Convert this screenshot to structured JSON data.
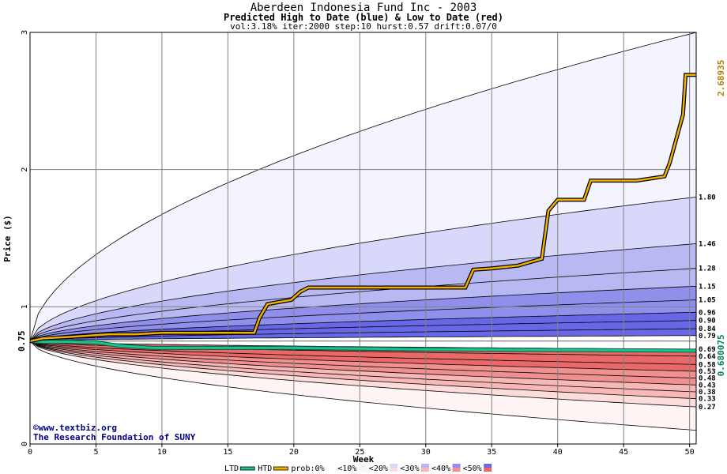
{
  "chart_data": {
    "type": "area",
    "title": "Aberdeen Indonesia Fund Inc - 2003",
    "subtitle": "Predicted High to Date (blue) &  Low to Date (red)",
    "params": "vol:3.18% iter:2000 step:10 hurst:0.57 drift:0.07/0",
    "xlabel": "Week",
    "ylabel": "Price ($)",
    "xlim": [
      0,
      50.5
    ],
    "ylim": [
      0,
      3
    ],
    "x_ticks": [
      0,
      5,
      10,
      15,
      20,
      25,
      30,
      35,
      40,
      45,
      50
    ],
    "y_ticks": [
      0,
      1,
      2,
      3
    ],
    "start_price": 0.75,
    "start_label": "0.75",
    "grid": true,
    "high_quantile_levels": [
      1.8,
      1.46,
      1.28,
      1.15,
      1.05,
      0.96,
      0.9,
      0.84,
      0.79
    ],
    "high_quantile_labels": [
      "1.80",
      "1.46",
      "1.28",
      "1.15",
      "1.05",
      "0.96",
      "0.90",
      "0.84",
      "0.79"
    ],
    "low_quantile_levels": [
      0.69,
      0.64,
      0.58,
      0.53,
      0.48,
      0.43,
      0.38,
      0.33,
      0.27
    ],
    "low_quantile_labels": [
      "0.69",
      "0.64",
      "0.58",
      "0.53",
      "0.48",
      "0.43",
      "0.38",
      "0.33",
      "0.27"
    ],
    "outer_high_end": 3.0,
    "outer_low_end": 0.1,
    "htd_series": {
      "name": "HTD",
      "x": [
        0,
        1,
        3,
        6,
        8,
        10,
        15,
        17,
        17.4,
        18,
        19.8,
        20.5,
        21.1,
        22,
        33,
        33.6,
        35,
        36,
        37,
        38.8,
        39.3,
        40,
        42,
        42.5,
        46,
        48.1,
        48.5,
        49.5,
        49.7,
        50.5
      ],
      "y": [
        0.75,
        0.77,
        0.78,
        0.8,
        0.8,
        0.81,
        0.81,
        0.81,
        0.92,
        1.02,
        1.05,
        1.11,
        1.14,
        1.14,
        1.14,
        1.27,
        1.28,
        1.29,
        1.3,
        1.35,
        1.7,
        1.78,
        1.78,
        1.92,
        1.92,
        1.95,
        2.05,
        2.4,
        2.69,
        2.69
      ],
      "end_label": "2.68935",
      "color": "#f0b000"
    },
    "ltd_series": {
      "name": "LTD",
      "x": [
        0,
        1,
        3,
        5,
        6.5,
        7,
        9.2,
        10,
        15,
        20,
        30,
        40,
        50.5
      ],
      "y": [
        0.75,
        0.745,
        0.745,
        0.74,
        0.72,
        0.715,
        0.7,
        0.7,
        0.7,
        0.7,
        0.69,
        0.685,
        0.680075
      ],
      "end_label": "0.680075",
      "color": "#20c090"
    },
    "legend": {
      "items": [
        "LTD",
        "HTD",
        "prob:0%",
        "<10%",
        "<20%",
        "<30%",
        "<40%",
        "<50%"
      ],
      "colors": [
        "#20c090",
        "#f0b000",
        "#ffffff",
        "#f4f4ff",
        "#d8d8fb",
        "#b8b8f2",
        "#9090ec",
        "#6868e6"
      ],
      "low_colors": [
        "#ffffff",
        "#fff4f4",
        "#fddcdc",
        "#f8b8b8",
        "#f09090",
        "#ea6868"
      ],
      "placement": "bottom"
    },
    "credits": [
      "©www.textbiz.org",
      "The Research Foundation of SUNY"
    ]
  }
}
